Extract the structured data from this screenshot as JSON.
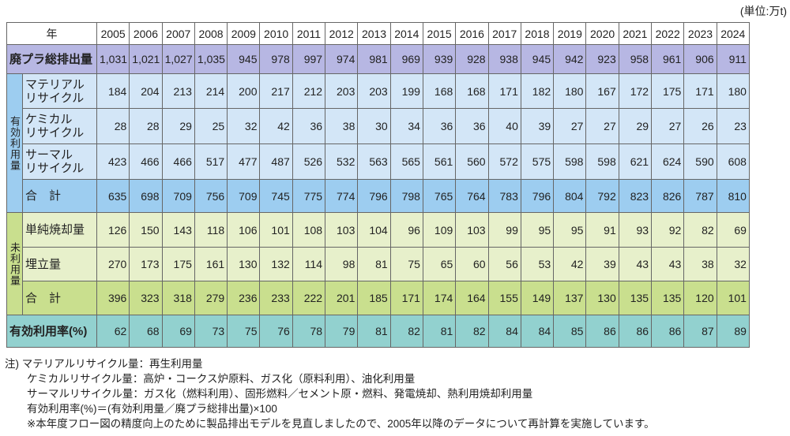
{
  "unit": "(単位:万t)",
  "table": {
    "header_label": "年",
    "years": [
      "2005",
      "2006",
      "2007",
      "2008",
      "2009",
      "2010",
      "2011",
      "2012",
      "2013",
      "2014",
      "2015",
      "2016",
      "2017",
      "2018",
      "2019",
      "2020",
      "2021",
      "2022",
      "2023",
      "2024"
    ],
    "sections": [
      {
        "rows": [
          {
            "label": [
              "廃プラ総排出量"
            ],
            "values": [
              "1,031",
              "1,021",
              "1,027",
              "1,035",
              "945",
              "978",
              "997",
              "974",
              "981",
              "969",
              "939",
              "928",
              "938",
              "945",
              "942",
              "923",
              "958",
              "961",
              "906",
              "911"
            ]
          }
        ]
      },
      {
        "label": "有効利用量",
        "rows": [
          {
            "label": [
              "マテリアル",
              "リサイクル"
            ],
            "values": [
              "184",
              "204",
              "213",
              "214",
              "200",
              "217",
              "212",
              "203",
              "203",
              "199",
              "168",
              "168",
              "171",
              "182",
              "180",
              "167",
              "172",
              "175",
              "171",
              "180"
            ]
          },
          {
            "label": [
              "ケミカル",
              "リサイクル"
            ],
            "values": [
              "28",
              "28",
              "29",
              "25",
              "32",
              "42",
              "36",
              "38",
              "30",
              "34",
              "36",
              "36",
              "40",
              "39",
              "27",
              "27",
              "29",
              "27",
              "26",
              "23"
            ]
          },
          {
            "label": [
              "サーマル",
              "リサイクル"
            ],
            "values": [
              "423",
              "466",
              "466",
              "517",
              "477",
              "487",
              "526",
              "532",
              "563",
              "565",
              "561",
              "560",
              "572",
              "575",
              "598",
              "598",
              "621",
              "624",
              "590",
              "608"
            ]
          },
          {
            "label": [
              "合　計"
            ],
            "values": [
              "635",
              "698",
              "709",
              "756",
              "709",
              "745",
              "775",
              "774",
              "796",
              "798",
              "765",
              "764",
              "783",
              "796",
              "804",
              "792",
              "823",
              "826",
              "787",
              "810"
            ]
          }
        ]
      },
      {
        "label": "未利用量",
        "rows": [
          {
            "label": [
              "単純焼却量"
            ],
            "values": [
              "126",
              "150",
              "143",
              "118",
              "106",
              "101",
              "108",
              "103",
              "104",
              "96",
              "109",
              "103",
              "99",
              "95",
              "95",
              "91",
              "93",
              "92",
              "82",
              "69"
            ]
          },
          {
            "label": [
              "埋立量"
            ],
            "values": [
              "270",
              "173",
              "175",
              "161",
              "130",
              "132",
              "114",
              "98",
              "81",
              "75",
              "65",
              "60",
              "56",
              "53",
              "42",
              "39",
              "43",
              "43",
              "38",
              "32"
            ]
          },
          {
            "label": [
              "合　計"
            ],
            "values": [
              "396",
              "323",
              "318",
              "279",
              "236",
              "233",
              "222",
              "201",
              "185",
              "171",
              "174",
              "164",
              "155",
              "149",
              "137",
              "130",
              "135",
              "135",
              "120",
              "101"
            ]
          }
        ]
      },
      {
        "rows": [
          {
            "label": [
              "有効利用率(%)"
            ],
            "values": [
              "62",
              "68",
              "69",
              "73",
              "75",
              "76",
              "78",
              "79",
              "81",
              "82",
              "81",
              "82",
              "84",
              "84",
              "85",
              "86",
              "86",
              "86",
              "87",
              "89"
            ]
          }
        ]
      }
    ]
  },
  "notes": {
    "prefix": "注)",
    "lines": [
      "マテリアルリサイクル量：再生利用量",
      "ケミカルリサイクル量：高炉・コークス炉原料、ガス化（原料利用）、油化利用量",
      "サーマルリサイクル量：ガス化（燃料利用）、固形燃料／セメント原・燃料、発電焼却、熱利用焼却利用量",
      "有効利用率(%)＝(有効利用量／廃プラ総排出量)×100",
      "※本年度フロー図の精度向上のために製品排出モデルを見直しましたので、2005年以降のデータについて再計算を実施しています。"
    ]
  }
}
